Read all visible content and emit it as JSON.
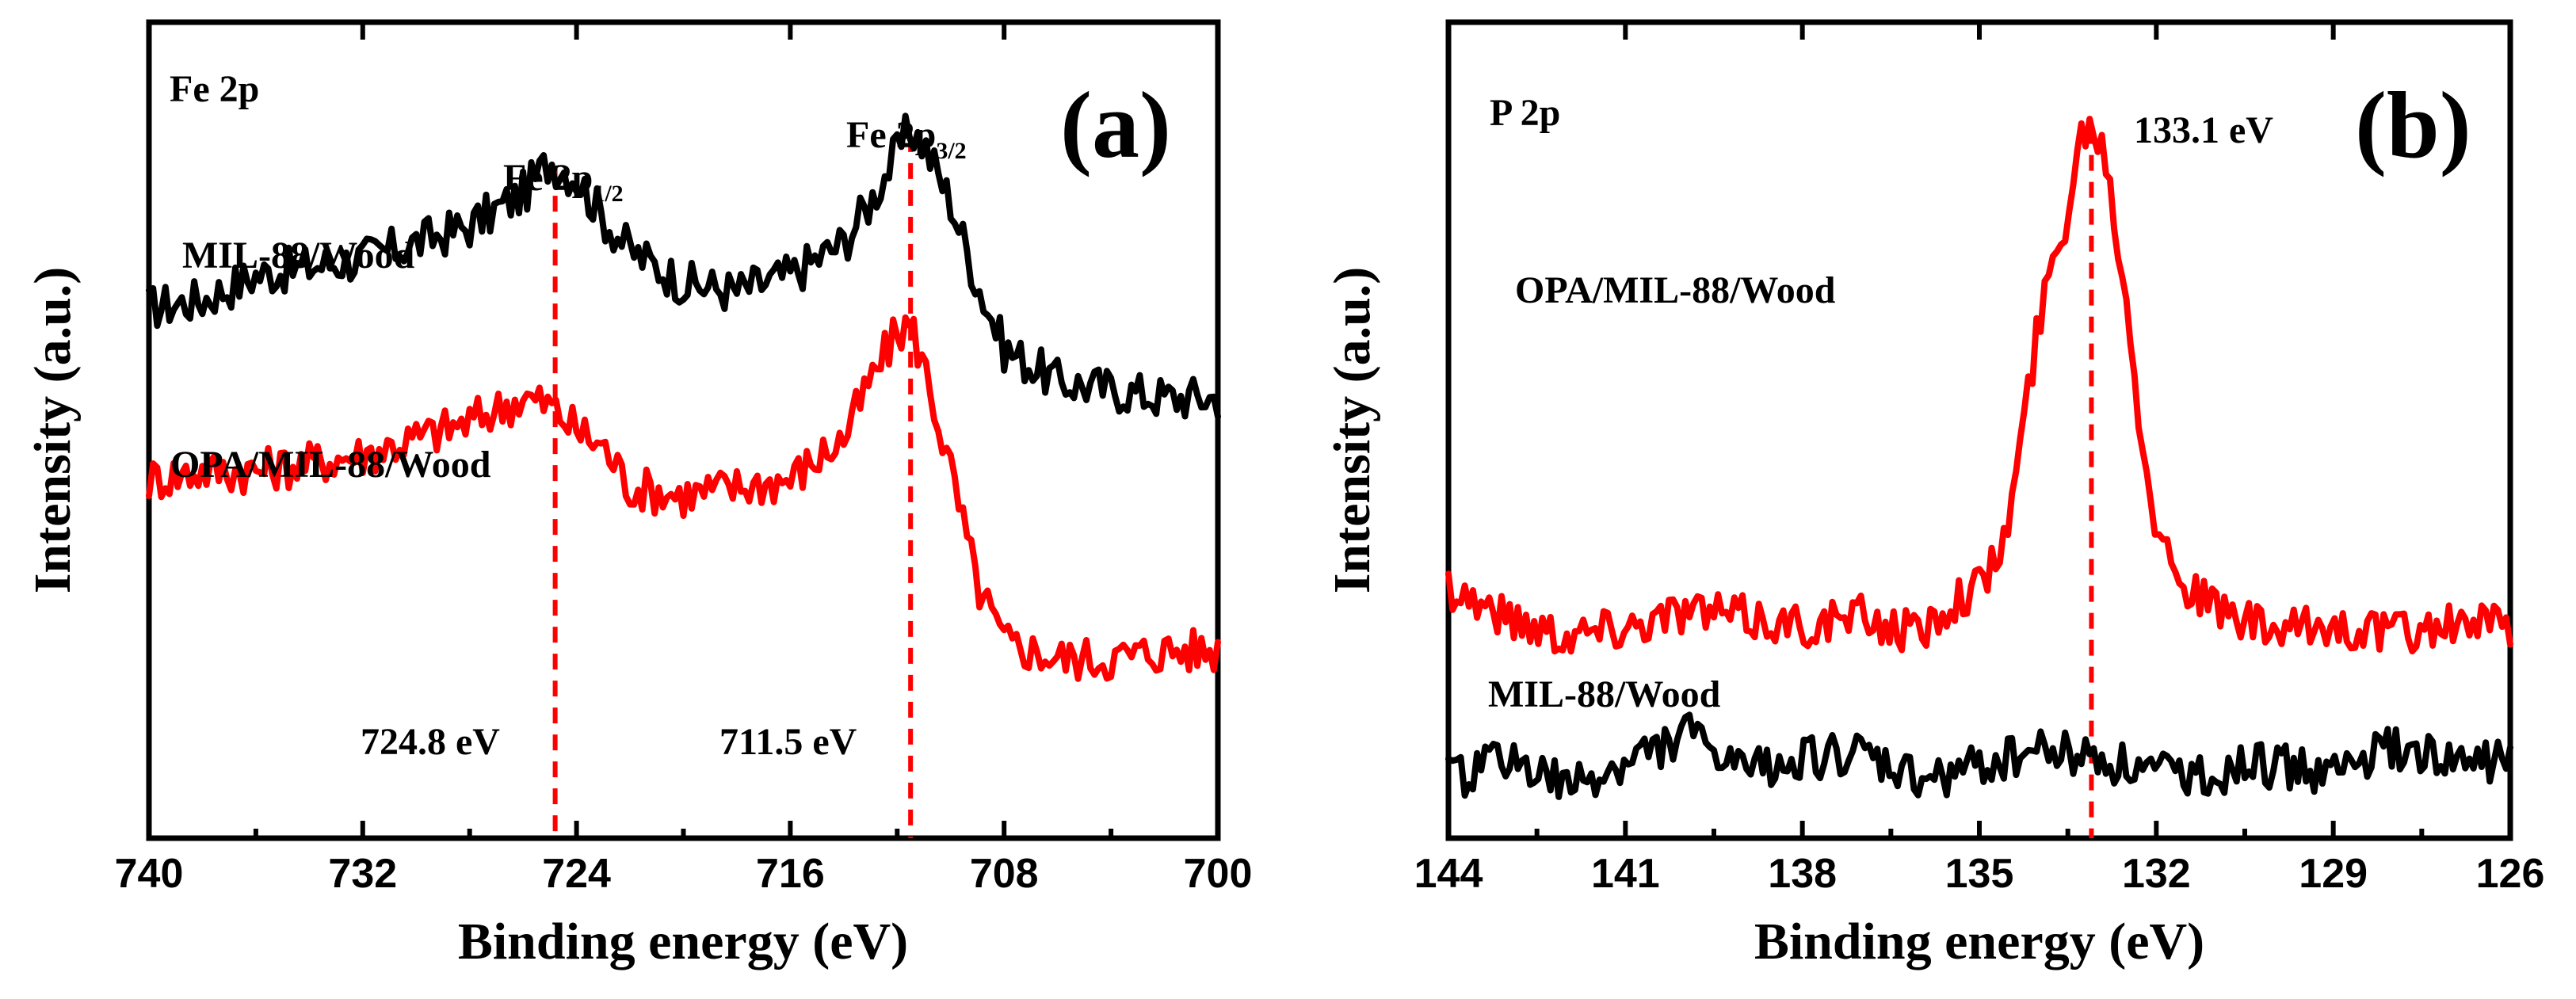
{
  "chart_data": [
    {
      "type": "line",
      "panel_label": "(a)",
      "element_label": "Fe 2p",
      "xlabel": "Binding energy (eV)",
      "ylabel": "Intensity (a.u.)",
      "xlim": [
        740,
        700
      ],
      "x_reversed": true,
      "y_ticks_shown": false,
      "xticks": [
        740,
        732,
        724,
        716,
        708,
        700
      ],
      "xtick_labels": [
        "740",
        "732",
        "724",
        "716",
        "708",
        "700"
      ],
      "ylim": [
        0,
        10
      ],
      "peak_labels": [
        {
          "main": "Fe 2p",
          "sub": "1/2",
          "x": 724.8
        },
        {
          "main": "Fe 2p",
          "sub": "3/2",
          "x": 711.5
        }
      ],
      "reference_lines": [
        {
          "x": 724.8,
          "label": "724.8 eV",
          "color": "#ff0000"
        },
        {
          "x": 711.5,
          "label": "711.5 eV",
          "color": "#ff0000"
        }
      ],
      "series": [
        {
          "name": "MIL-88/Wood",
          "color": "#000000",
          "points": [
            [
              740,
              6.5
            ],
            [
              738,
              6.6
            ],
            [
              736,
              6.9
            ],
            [
              734,
              7.0
            ],
            [
              732,
              7.1
            ],
            [
              730,
              7.3
            ],
            [
              728,
              7.5
            ],
            [
              726,
              7.9
            ],
            [
              725,
              8.3
            ],
            [
              724,
              8.1
            ],
            [
              723,
              7.6
            ],
            [
              722,
              7.2
            ],
            [
              720,
              6.8
            ],
            [
              718,
              6.7
            ],
            [
              716,
              6.9
            ],
            [
              714,
              7.3
            ],
            [
              713,
              7.8
            ],
            [
              712,
              8.4
            ],
            [
              711.5,
              8.7
            ],
            [
              711,
              8.5
            ],
            [
              710,
              7.8
            ],
            [
              709,
              6.8
            ],
            [
              708,
              6.0
            ],
            [
              706,
              5.6
            ],
            [
              704,
              5.5
            ],
            [
              702,
              5.4
            ],
            [
              700,
              5.4
            ]
          ]
        },
        {
          "name": "OPA/MIL-88/Wood",
          "color": "#ff0000",
          "points": [
            [
              740,
              4.4
            ],
            [
              738,
              4.5
            ],
            [
              736,
              4.5
            ],
            [
              734,
              4.6
            ],
            [
              732,
              4.7
            ],
            [
              730,
              4.9
            ],
            [
              728,
              5.1
            ],
            [
              726,
              5.4
            ],
            [
              725,
              5.3
            ],
            [
              724,
              5.0
            ],
            [
              723,
              4.8
            ],
            [
              722,
              4.3
            ],
            [
              720,
              4.2
            ],
            [
              718,
              4.3
            ],
            [
              716,
              4.4
            ],
            [
              714,
              4.9
            ],
            [
              713,
              5.6
            ],
            [
              712,
              6.2
            ],
            [
              711.5,
              6.3
            ],
            [
              711,
              5.8
            ],
            [
              710,
              4.5
            ],
            [
              709,
              3.1
            ],
            [
              708,
              2.4
            ],
            [
              706,
              2.2
            ],
            [
              704,
              2.2
            ],
            [
              702,
              2.3
            ],
            [
              700,
              2.3
            ]
          ]
        }
      ]
    },
    {
      "type": "line",
      "panel_label": "(b)",
      "element_label": "P 2p",
      "xlabel": "Binding energy (eV)",
      "ylabel": "Intensity (a.u.)",
      "xlim": [
        144,
        126
      ],
      "x_reversed": true,
      "y_ticks_shown": false,
      "xticks": [
        144,
        141,
        138,
        135,
        132,
        129,
        126
      ],
      "xtick_labels": [
        "144",
        "141",
        "138",
        "135",
        "132",
        "129",
        "126"
      ],
      "ylim": [
        0,
        10
      ],
      "peak_label": "133.1 eV",
      "reference_lines": [
        {
          "x": 133.1,
          "color": "#ff0000"
        }
      ],
      "series": [
        {
          "name": "OPA/MIL-88/Wood",
          "color": "#ff0000",
          "points": [
            [
              144,
              3.1
            ],
            [
              143,
              2.7
            ],
            [
              142,
              2.5
            ],
            [
              141,
              2.6
            ],
            [
              140,
              2.8
            ],
            [
              139,
              2.7
            ],
            [
              138,
              2.6
            ],
            [
              137,
              2.7
            ],
            [
              136,
              2.5
            ],
            [
              135.5,
              2.9
            ],
            [
              135,
              3.1
            ],
            [
              134.7,
              3.4
            ],
            [
              134.5,
              3.9
            ],
            [
              134.2,
              5.3
            ],
            [
              134,
              6.3
            ],
            [
              133.8,
              6.9
            ],
            [
              133.5,
              7.7
            ],
            [
              133.3,
              8.6
            ],
            [
              133.1,
              8.8
            ],
            [
              132.9,
              8.5
            ],
            [
              132.7,
              7.6
            ],
            [
              132.5,
              6.6
            ],
            [
              132.3,
              5.3
            ],
            [
              132,
              3.8
            ],
            [
              131.5,
              3.1
            ],
            [
              131,
              2.8
            ],
            [
              130,
              2.5
            ],
            [
              129,
              2.6
            ],
            [
              128,
              2.5
            ],
            [
              127,
              2.6
            ],
            [
              126,
              2.6
            ]
          ]
        },
        {
          "name": "MIL-88/Wood",
          "color": "#000000",
          "points": [
            [
              144,
              0.7
            ],
            [
              143,
              1.0
            ],
            [
              142,
              0.6
            ],
            [
              141,
              0.9
            ],
            [
              140,
              1.3
            ],
            [
              139,
              0.8
            ],
            [
              138,
              1.0
            ],
            [
              137,
              1.0
            ],
            [
              136,
              0.7
            ],
            [
              135,
              0.9
            ],
            [
              134,
              1.1
            ],
            [
              133,
              1.0
            ],
            [
              132,
              0.8
            ],
            [
              131,
              0.8
            ],
            [
              130,
              0.9
            ],
            [
              129,
              0.8
            ],
            [
              128,
              1.1
            ],
            [
              127,
              0.9
            ],
            [
              126,
              1.0
            ]
          ]
        }
      ]
    }
  ]
}
